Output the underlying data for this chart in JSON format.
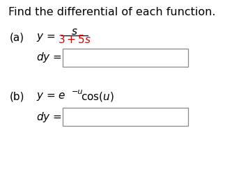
{
  "title": "Find the differential of each function.",
  "title_color": "#000000",
  "title_fontsize": 11.5,
  "background_color": "#ffffff",
  "part_a_label": "(a)",
  "part_a_numerator": "s",
  "part_a_denominator": "3 + 5s",
  "part_a_denom_color": "#dd0000",
  "part_b_label": "(b)",
  "part_b_sup": "−u",
  "box_edge_color": "#888888",
  "text_color": "#000000",
  "font_size_main": 11,
  "font_size_small": 8
}
